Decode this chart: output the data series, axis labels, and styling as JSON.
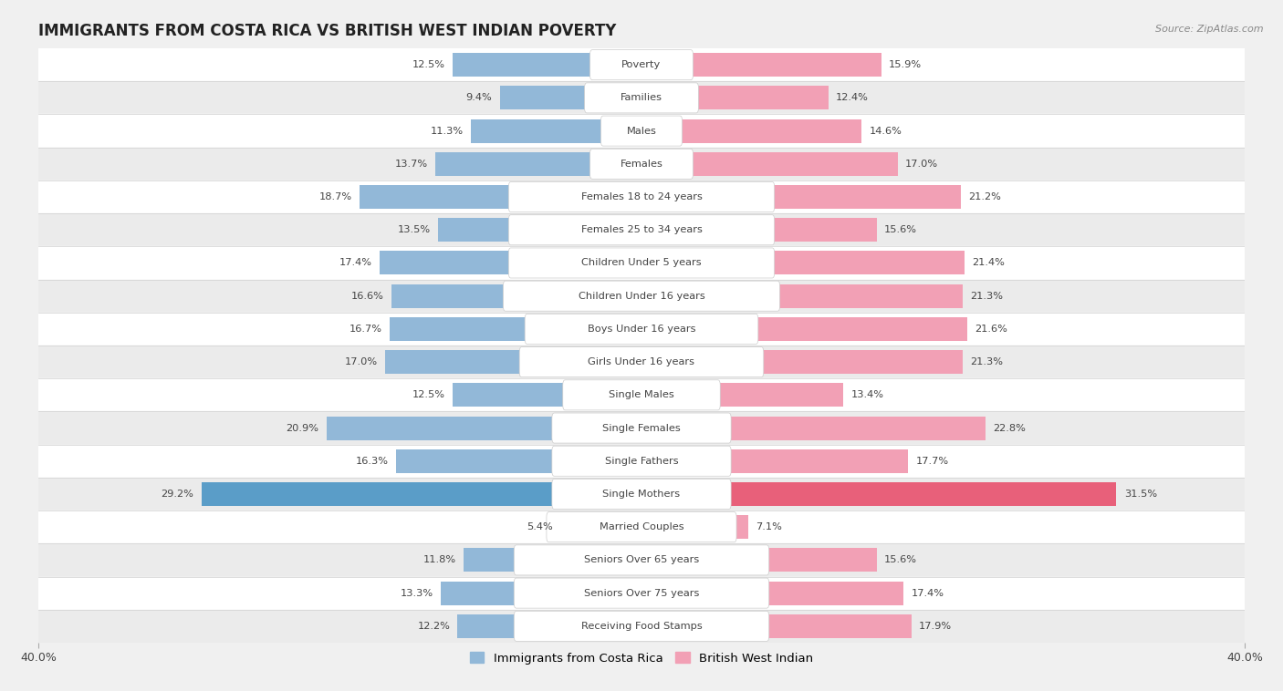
{
  "title": "IMMIGRANTS FROM COSTA RICA VS BRITISH WEST INDIAN POVERTY",
  "source": "Source: ZipAtlas.com",
  "categories": [
    "Poverty",
    "Families",
    "Males",
    "Females",
    "Females 18 to 24 years",
    "Females 25 to 34 years",
    "Children Under 5 years",
    "Children Under 16 years",
    "Boys Under 16 years",
    "Girls Under 16 years",
    "Single Males",
    "Single Females",
    "Single Fathers",
    "Single Mothers",
    "Married Couples",
    "Seniors Over 65 years",
    "Seniors Over 75 years",
    "Receiving Food Stamps"
  ],
  "costa_rica": [
    12.5,
    9.4,
    11.3,
    13.7,
    18.7,
    13.5,
    17.4,
    16.6,
    16.7,
    17.0,
    12.5,
    20.9,
    16.3,
    29.2,
    5.4,
    11.8,
    13.3,
    12.2
  ],
  "british_west_indian": [
    15.9,
    12.4,
    14.6,
    17.0,
    21.2,
    15.6,
    21.4,
    21.3,
    21.6,
    21.3,
    13.4,
    22.8,
    17.7,
    31.5,
    7.1,
    15.6,
    17.4,
    17.9
  ],
  "costa_rica_color": "#92b8d8",
  "british_west_indian_color": "#f2a0b5",
  "costa_rica_highlight": "#5a9dc8",
  "british_west_indian_highlight": "#e8607a",
  "axis_max": 40.0,
  "bar_height": 0.72,
  "row_colors": [
    "#ffffff",
    "#ebebeb"
  ],
  "background_color": "#f0f0f0",
  "label_color": "#444444",
  "category_fontsize": 8.2,
  "value_fontsize": 8.2,
  "title_fontsize": 12,
  "legend_fontsize": 9.5
}
